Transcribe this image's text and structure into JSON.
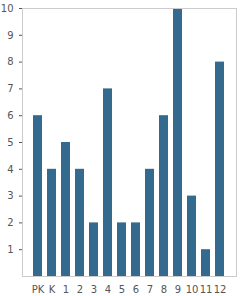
{
  "chart_data": {
    "type": "bar",
    "categories": [
      "PK",
      "K",
      "1",
      "2",
      "3",
      "4",
      "5",
      "6",
      "7",
      "8",
      "9",
      "10",
      "11",
      "12"
    ],
    "values": [
      6,
      4,
      5,
      4,
      2,
      7,
      2,
      2,
      4,
      6,
      10,
      3,
      1,
      8
    ],
    "color": "#336a8d",
    "ylim": [
      0,
      10
    ],
    "yticks": [
      1,
      2,
      3,
      4,
      5,
      6,
      7,
      8,
      9,
      10
    ],
    "grid": false
  }
}
